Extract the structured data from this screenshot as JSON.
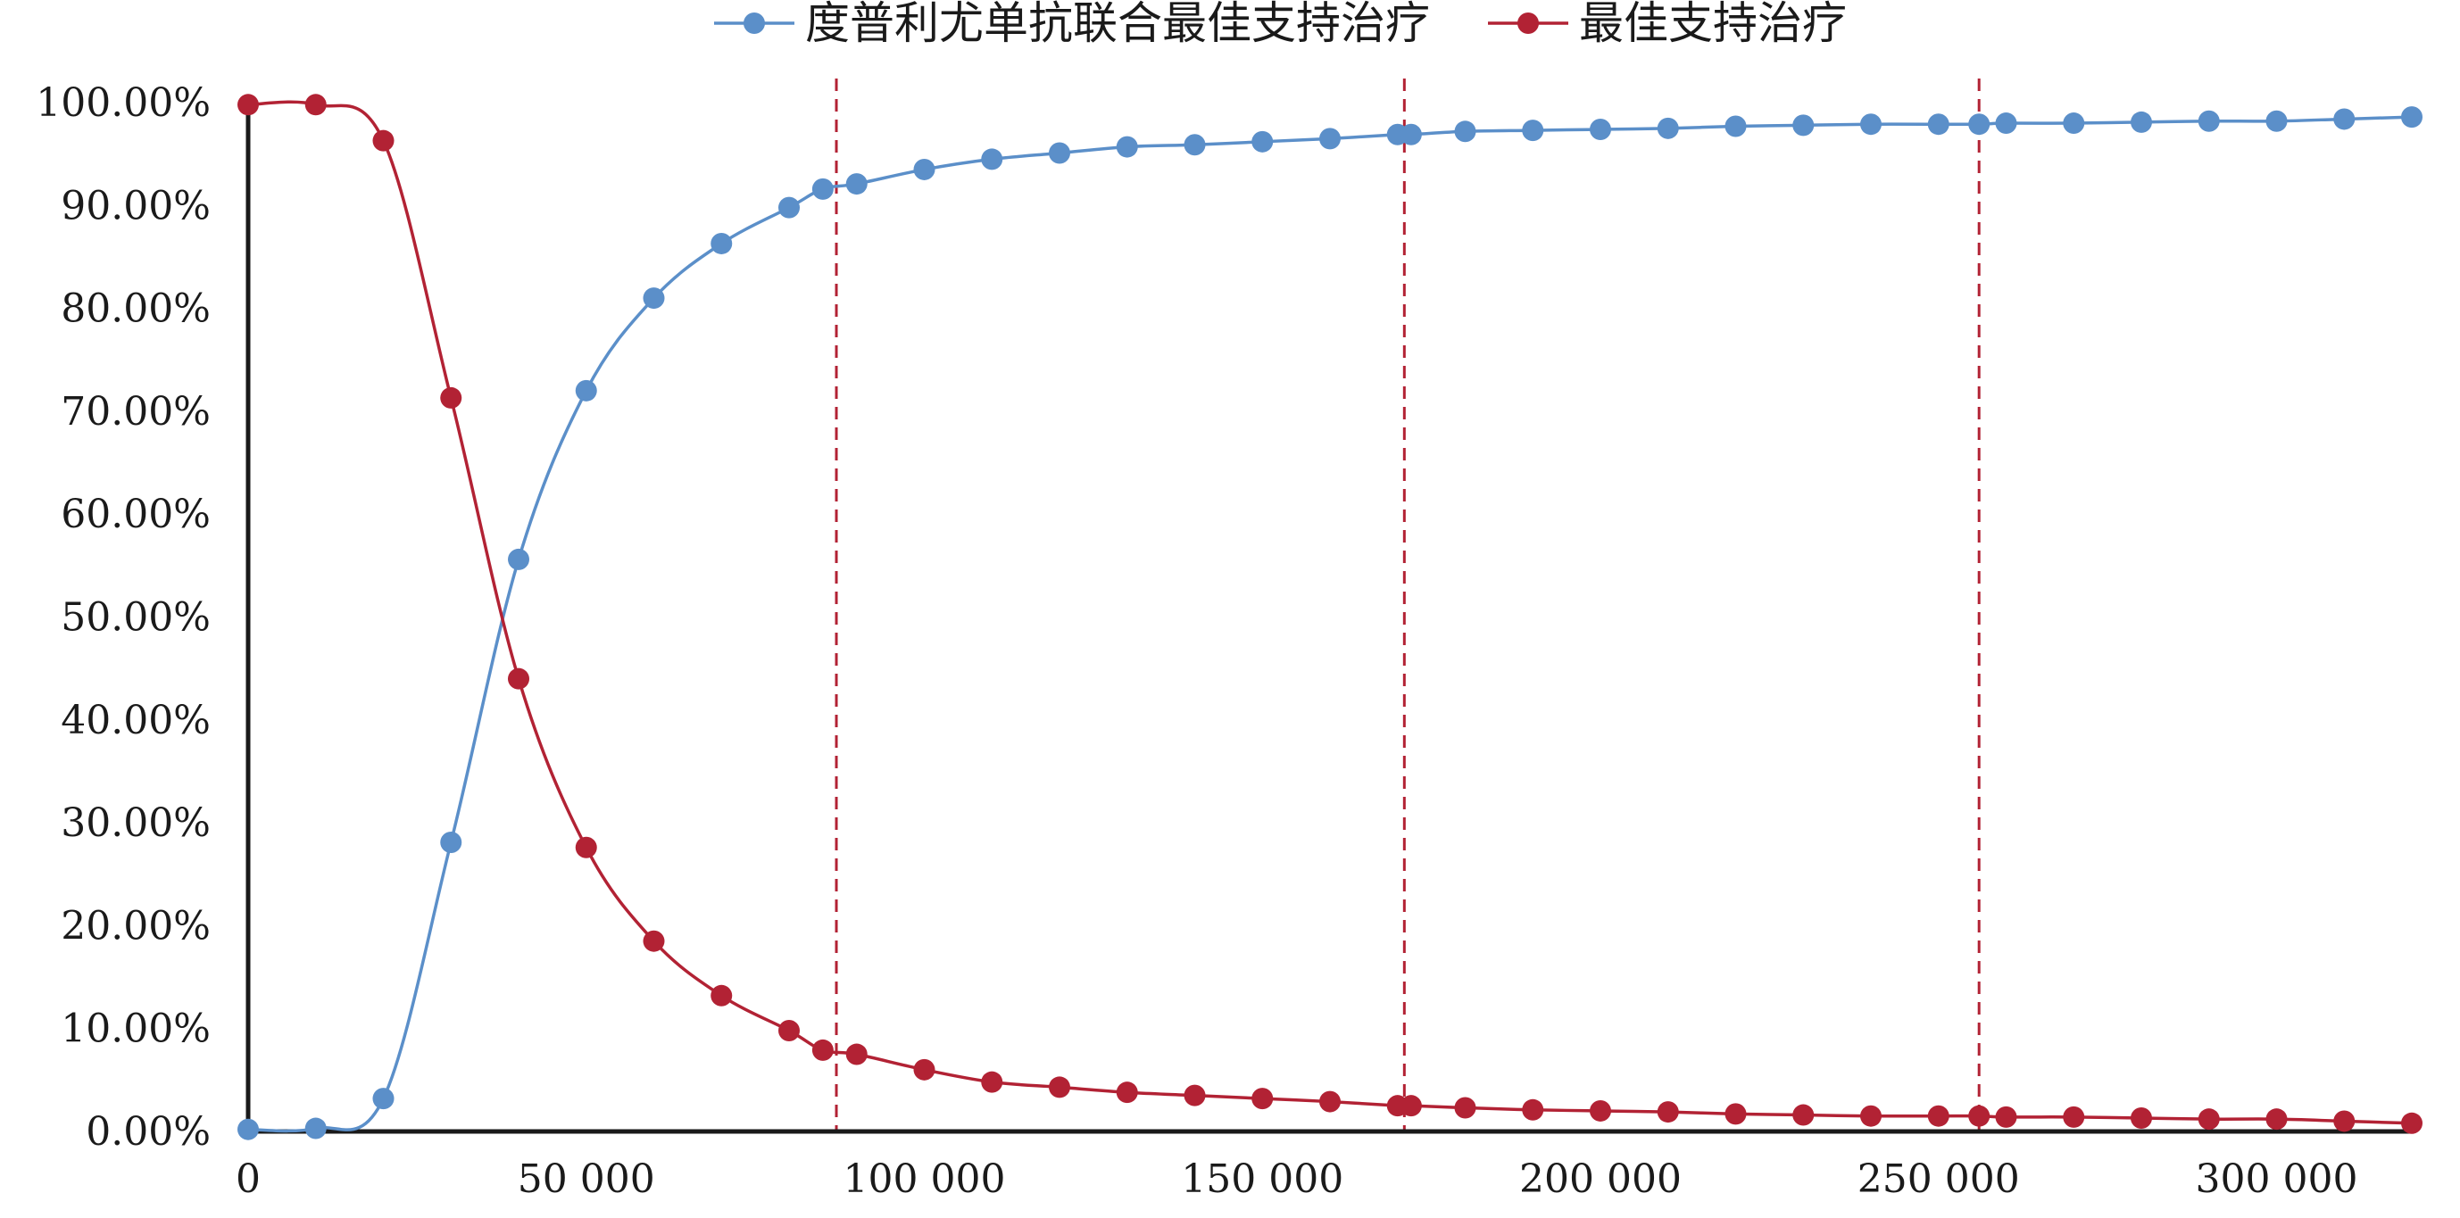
{
  "chart_data": {
    "type": "line",
    "title": "",
    "xlabel": "",
    "ylabel": "",
    "xlim": [
      0,
      320000
    ],
    "ylim": [
      0,
      100
    ],
    "x_ticks": [
      0,
      50000,
      100000,
      150000,
      200000,
      250000,
      300000
    ],
    "x_tick_labels": [
      "0",
      "50 000",
      "100 000",
      "150 000",
      "200 000",
      "250 000",
      "300 000"
    ],
    "y_ticks": [
      0,
      10,
      20,
      30,
      40,
      50,
      60,
      70,
      80,
      90,
      100
    ],
    "y_tick_labels": [
      "0.00%",
      "10.00%",
      "20.00%",
      "30.00%",
      "40.00%",
      "50.00%",
      "60.00%",
      "70.00%",
      "80.00%",
      "90.00%",
      "100.00%"
    ],
    "grid": false,
    "legend_position": "top",
    "reference_lines_x": [
      87000,
      171000,
      256000
    ],
    "reference_line_color": "#b22234",
    "series": [
      {
        "name": "度普利尤单抗联合最佳支持治疗",
        "color": "#5b8fc9",
        "x": [
          0,
          10000,
          20000,
          30000,
          40000,
          50000,
          60000,
          70000,
          80000,
          85000,
          90000,
          100000,
          110000,
          120000,
          130000,
          140000,
          150000,
          160000,
          170000,
          172000,
          180000,
          190000,
          200000,
          210000,
          220000,
          230000,
          240000,
          250000,
          256000,
          260000,
          270000,
          280000,
          290000,
          300000,
          310000,
          320000
        ],
        "y": [
          0.2,
          0.3,
          3.2,
          28.1,
          55.6,
          72.0,
          81.0,
          86.3,
          89.8,
          91.6,
          92.1,
          93.5,
          94.5,
          95.1,
          95.7,
          95.9,
          96.2,
          96.5,
          96.9,
          96.9,
          97.2,
          97.3,
          97.4,
          97.5,
          97.7,
          97.8,
          97.9,
          97.9,
          97.9,
          98.0,
          98.0,
          98.1,
          98.2,
          98.2,
          98.4,
          98.6
        ]
      },
      {
        "name": "最佳支持治疗",
        "color": "#b22234",
        "x": [
          0,
          10000,
          20000,
          30000,
          40000,
          50000,
          60000,
          70000,
          80000,
          85000,
          90000,
          100000,
          110000,
          120000,
          130000,
          140000,
          150000,
          160000,
          170000,
          172000,
          180000,
          190000,
          200000,
          210000,
          220000,
          230000,
          240000,
          250000,
          256000,
          260000,
          270000,
          280000,
          290000,
          300000,
          310000,
          320000
        ],
        "y": [
          99.8,
          99.8,
          96.3,
          71.3,
          44.0,
          27.6,
          18.5,
          13.2,
          9.8,
          7.9,
          7.5,
          6.0,
          4.8,
          4.3,
          3.8,
          3.5,
          3.2,
          2.9,
          2.5,
          2.5,
          2.3,
          2.1,
          2.0,
          1.9,
          1.7,
          1.6,
          1.5,
          1.5,
          1.5,
          1.4,
          1.4,
          1.3,
          1.2,
          1.2,
          1.0,
          0.8
        ]
      }
    ]
  }
}
